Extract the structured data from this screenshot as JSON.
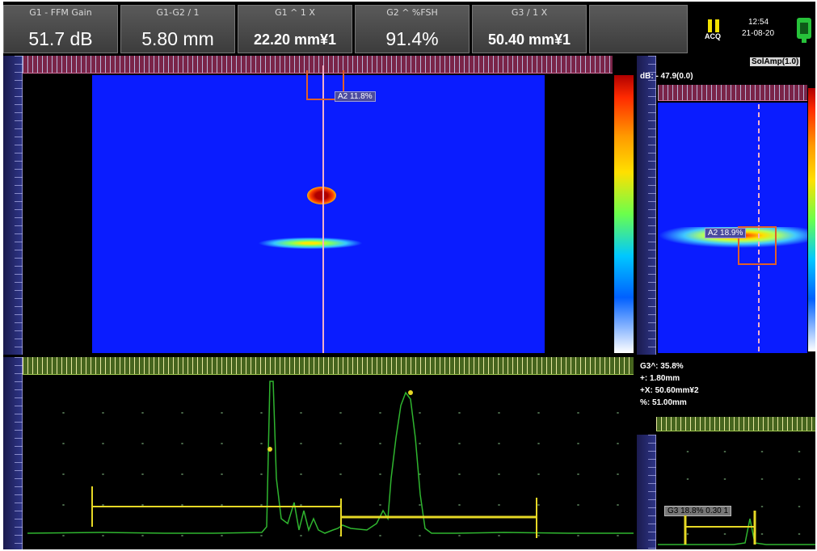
{
  "header": {
    "readings": [
      {
        "label": "G1 - FFM Gain",
        "value": "51.7 dB"
      },
      {
        "label": "G1-G2 / 1",
        "value": "5.80 mm"
      },
      {
        "label": "G1 ^ 1 X",
        "value": "22.20 mm¥1"
      },
      {
        "label": "G2 ^ %FSH",
        "value": "91.4%"
      },
      {
        "label": "G3 / 1 X",
        "value": "50.40 mm¥1"
      }
    ],
    "status": {
      "acq_label": "ACQ",
      "time": "12:54",
      "date": "21-08-20"
    }
  },
  "cscan": {
    "cursor_tag": "A2 11.8%"
  },
  "side_view": {
    "readout": "dB: - 47.9(0.0)",
    "mode_label": "SolAmp(1.0)",
    "cursor_tag": "A2 18.9%"
  },
  "ascan_info": {
    "lines": [
      "G3^: 35.8%",
      "+: 1.80mm",
      "+X: 50.60mm¥2",
      "%: 51.00mm"
    ],
    "tag": "G3 18.8% 0.30 1"
  },
  "colors": {
    "scan_blue": "#0a1cff",
    "signal_green": "#2fb52f",
    "gate_yellow": "#e6d825",
    "cursor_pink": "#f0b0c8",
    "gate_orange": "#e0602a"
  },
  "icons": [
    "pause-icon",
    "probe-icon"
  ]
}
